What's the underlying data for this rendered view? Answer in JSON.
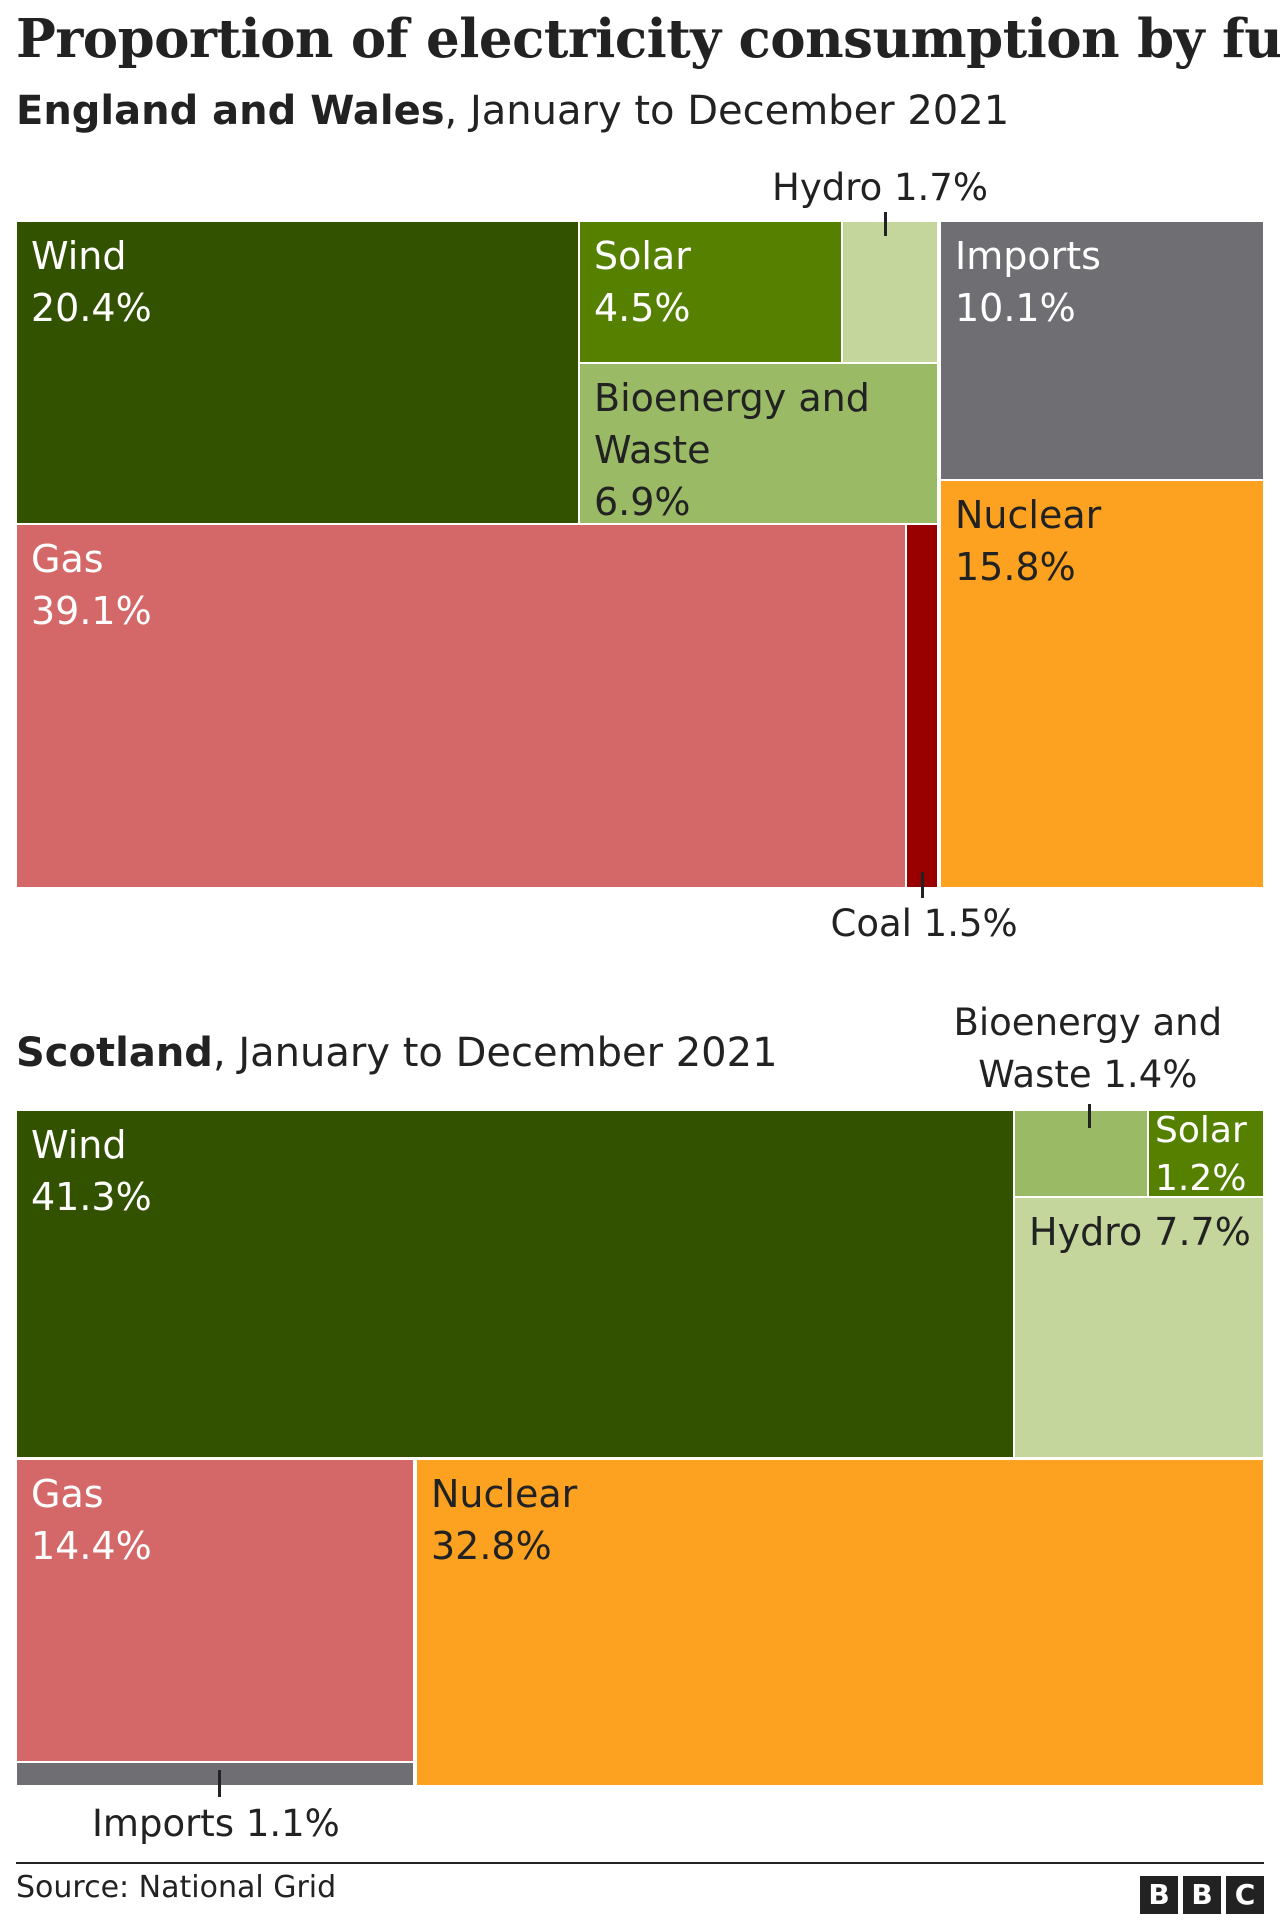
{
  "title": "Proportion of electricity consumption by fuel",
  "source": "Source: National Grid",
  "logo": [
    "B",
    "B",
    "C"
  ],
  "colors": {
    "wind": "#335200",
    "solar": "#558000",
    "hydro": "#c4d69c",
    "bioenergy": "#9aba66",
    "imports": "#6e6e73",
    "gas": "#d46868",
    "coal": "#990000",
    "nuclear": "#fca220"
  },
  "chart_data": [
    {
      "type": "treemap",
      "subtitle_bold": "England and Wales",
      "subtitle_rest": ", January to December 2021",
      "series": [
        {
          "name": "Wind",
          "value": 20.4,
          "label": "Wind\n20.4%"
        },
        {
          "name": "Solar",
          "value": 4.5,
          "label": "Solar\n4.5%"
        },
        {
          "name": "Hydro",
          "value": 1.7,
          "label": "Hydro 1.7%"
        },
        {
          "name": "Bioenergy and Waste",
          "value": 6.9,
          "label": "Bioenergy and\nWaste\n6.9%"
        },
        {
          "name": "Imports",
          "value": 10.1,
          "label": "Imports\n10.1%"
        },
        {
          "name": "Gas",
          "value": 39.1,
          "label": "Gas\n39.1%"
        },
        {
          "name": "Coal",
          "value": 1.5,
          "label": "Coal 1.5%"
        },
        {
          "name": "Nuclear",
          "value": 15.8,
          "label": "Nuclear\n15.8%"
        }
      ]
    },
    {
      "type": "treemap",
      "subtitle_bold": "Scotland",
      "subtitle_rest": ", January to December 2021",
      "series": [
        {
          "name": "Wind",
          "value": 41.3,
          "label": "Wind\n41.3%"
        },
        {
          "name": "Bioenergy and Waste",
          "value": 1.4,
          "label": "Bioenergy and\nWaste 1.4%"
        },
        {
          "name": "Solar",
          "value": 1.2,
          "label": "Solar\n1.2%"
        },
        {
          "name": "Hydro",
          "value": 7.7,
          "label": "Hydro 7.7%"
        },
        {
          "name": "Gas",
          "value": 14.4,
          "label": "Gas\n14.4%"
        },
        {
          "name": "Imports",
          "value": 1.1,
          "label": "Imports 1.1%"
        },
        {
          "name": "Nuclear",
          "value": 32.8,
          "label": "Nuclear\n32.8%"
        }
      ]
    }
  ]
}
